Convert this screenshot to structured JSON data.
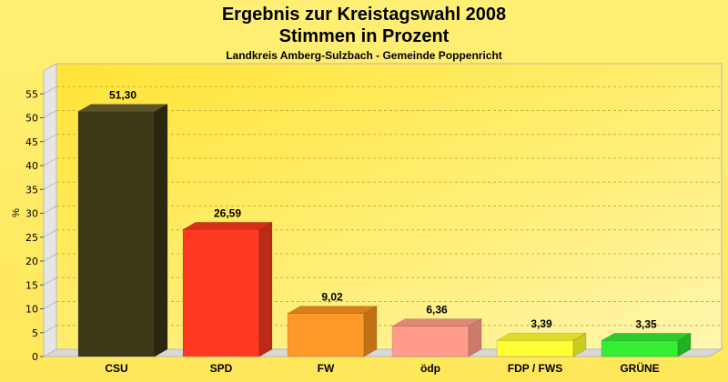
{
  "chart_data": {
    "type": "bar",
    "title": "Ergebnis zur Kreistagswahl 2008",
    "title2": "Stimmen in Prozent",
    "subtitle": "Landkreis Amberg-Sulzbach - Gemeinde Poppenricht",
    "ylabel": "%",
    "xlabel": "",
    "ylim": [
      0,
      57
    ],
    "yticks": [
      "0",
      "5",
      "10",
      "15",
      "20",
      "25",
      "30",
      "35",
      "40",
      "45",
      "50",
      "55"
    ],
    "grid": "horizontal dashed",
    "categories": [
      "CSU",
      "SPD",
      "FW",
      "ödp",
      "FDP / FWS",
      "GRÜNE"
    ],
    "values": [
      51.3,
      26.59,
      9.02,
      6.36,
      3.39,
      3.35
    ],
    "value_labels": [
      "51,30",
      "26,59",
      "9,02",
      "6,36",
      "3,39",
      "3,35"
    ],
    "colors": [
      "#3c3818",
      "#ff3a22",
      "#ff9a2a",
      "#ff9c8c",
      "#ffff33",
      "#33ee33"
    ],
    "side_colors": [
      "#2a2710",
      "#bb2a18",
      "#c27016",
      "#cc7a6c",
      "#caca22",
      "#22b022"
    ],
    "top_colors": [
      "#5a5428",
      "#d83018",
      "#d88018",
      "#e08878",
      "#dddd2a",
      "#2ccc2c"
    ]
  }
}
